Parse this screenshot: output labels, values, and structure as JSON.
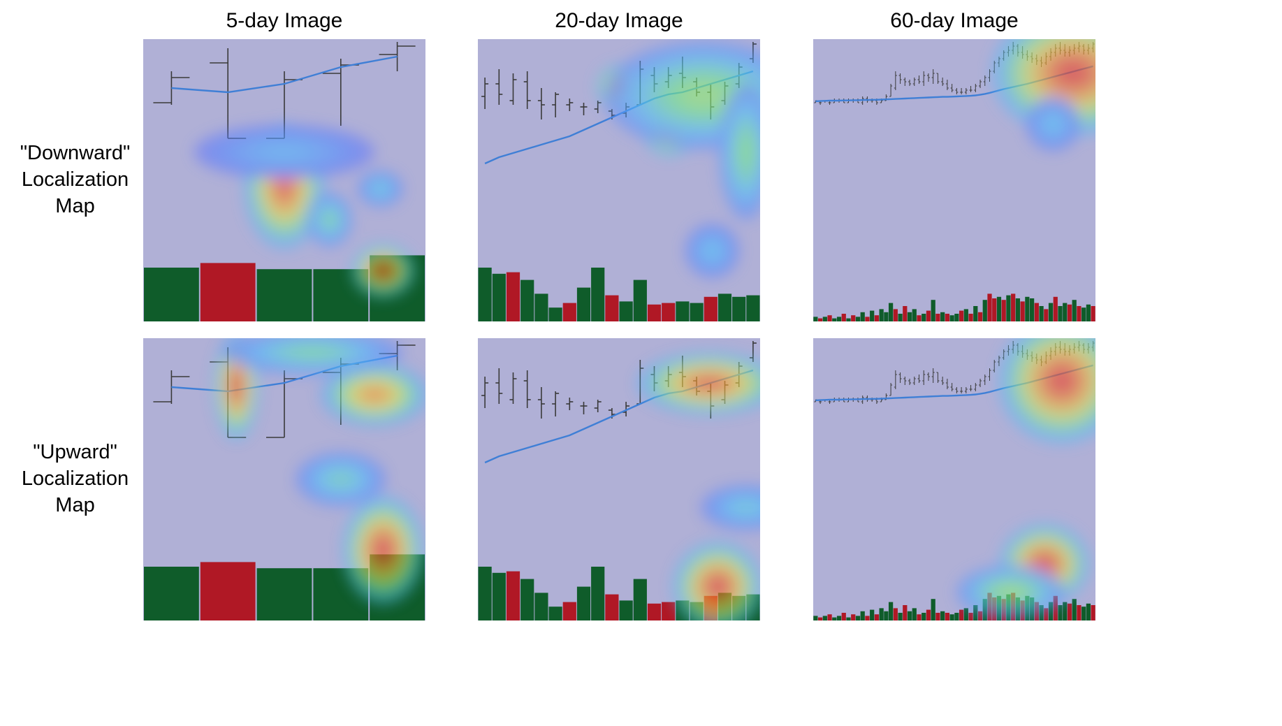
{
  "columns": [
    {
      "title": "5-day Image"
    },
    {
      "title": "20-day Image"
    },
    {
      "title": "60-day Image"
    }
  ],
  "rows": [
    {
      "label_lines": [
        "\"Downward\"",
        "Localization",
        "Map"
      ]
    },
    {
      "label_lines": [
        "\"Upward\"",
        "Localization",
        "Map"
      ]
    }
  ],
  "colors": {
    "background_tint": "#b0b0d6",
    "price_bar": "#3a3a3a",
    "moving_average": "#3f7fd6",
    "volume_up": "#0f5c2a",
    "volume_down": "#b01825"
  },
  "panels": {
    "5": {
      "prices": [
        {
          "h": 0.86,
          "l": 0.7,
          "o": 0.71,
          "c": 0.83
        },
        {
          "h": 0.97,
          "l": 0.54,
          "o": 0.9,
          "c": 0.54
        },
        {
          "h": 0.86,
          "l": 0.54,
          "o": 0.54,
          "c": 0.82
        },
        {
          "h": 0.92,
          "l": 0.6,
          "o": 0.85,
          "c": 0.89
        },
        {
          "h": 1.0,
          "l": 0.86,
          "o": 0.94,
          "c": 0.98
        }
      ],
      "ma": [
        0.78,
        0.76,
        0.8,
        0.88,
        0.93
      ],
      "volume": [
        0.35,
        0.38,
        0.34,
        0.34,
        0.43
      ],
      "dir": [
        1,
        -1,
        1,
        1,
        1
      ],
      "heat": {
        "down": [
          [
            0.5,
            0.48,
            0.09,
            0.14,
            0.95
          ],
          [
            0.85,
            0.18,
            0.07,
            0.06,
            1.0
          ],
          [
            0.66,
            0.36,
            0.05,
            0.06,
            0.45
          ],
          [
            0.84,
            0.47,
            0.05,
            0.04,
            0.35
          ],
          [
            0.5,
            0.6,
            0.2,
            0.06,
            0.25
          ]
        ],
        "up": [
          [
            0.85,
            0.25,
            0.09,
            0.12,
            1.0
          ],
          [
            0.33,
            0.83,
            0.05,
            0.12,
            1.0
          ],
          [
            0.82,
            0.8,
            0.12,
            0.07,
            0.85
          ],
          [
            0.7,
            0.5,
            0.1,
            0.06,
            0.4
          ],
          [
            0.6,
            0.95,
            0.2,
            0.05,
            0.45
          ]
        ]
      }
    },
    "20": {
      "prices": [
        {
          "h": 0.83,
          "l": 0.68,
          "o": 0.74,
          "c": 0.8
        },
        {
          "h": 0.87,
          "l": 0.7,
          "o": 0.8,
          "c": 0.75
        },
        {
          "h": 0.85,
          "l": 0.7,
          "o": 0.72,
          "c": 0.82
        },
        {
          "h": 0.86,
          "l": 0.68,
          "o": 0.81,
          "c": 0.72
        },
        {
          "h": 0.78,
          "l": 0.63,
          "o": 0.72,
          "c": 0.7
        },
        {
          "h": 0.76,
          "l": 0.64,
          "o": 0.7,
          "c": 0.75
        },
        {
          "h": 0.73,
          "l": 0.67,
          "o": 0.7,
          "c": 0.71
        },
        {
          "h": 0.71,
          "l": 0.65,
          "o": 0.69,
          "c": 0.69
        },
        {
          "h": 0.72,
          "l": 0.66,
          "o": 0.68,
          "c": 0.71
        },
        {
          "h": 0.68,
          "l": 0.63,
          "o": 0.67,
          "c": 0.65
        },
        {
          "h": 0.71,
          "l": 0.64,
          "o": 0.66,
          "c": 0.69
        },
        {
          "h": 0.91,
          "l": 0.7,
          "o": 0.7,
          "c": 0.87
        },
        {
          "h": 0.88,
          "l": 0.76,
          "o": 0.84,
          "c": 0.8
        },
        {
          "h": 0.88,
          "l": 0.78,
          "o": 0.81,
          "c": 0.84
        },
        {
          "h": 0.93,
          "l": 0.78,
          "o": 0.85,
          "c": 0.83
        },
        {
          "h": 0.83,
          "l": 0.74,
          "o": 0.81,
          "c": 0.76
        },
        {
          "h": 0.8,
          "l": 0.63,
          "o": 0.76,
          "c": 0.69
        },
        {
          "h": 0.81,
          "l": 0.7,
          "o": 0.72,
          "c": 0.79
        },
        {
          "h": 0.9,
          "l": 0.78,
          "o": 0.8,
          "c": 0.88
        },
        {
          "h": 1.0,
          "l": 0.9,
          "o": 0.92,
          "c": 0.99
        }
      ],
      "ma": [
        0.42,
        0.45,
        0.47,
        0.49,
        0.51,
        0.53,
        0.55,
        0.58,
        0.61,
        0.64,
        0.67,
        0.7,
        0.73,
        0.75,
        0.76,
        0.78,
        0.8,
        0.82,
        0.84,
        0.86
      ],
      "volume": [
        0.35,
        0.31,
        0.32,
        0.27,
        0.18,
        0.09,
        0.12,
        0.22,
        0.35,
        0.17,
        0.13,
        0.27,
        0.11,
        0.12,
        0.13,
        0.12,
        0.16,
        0.18,
        0.16,
        0.17
      ],
      "dir": [
        1,
        1,
        -1,
        1,
        1,
        1,
        -1,
        1,
        1,
        -1,
        1,
        1,
        -1,
        -1,
        1,
        1,
        -1,
        1,
        1,
        1
      ],
      "heat": {
        "down": [
          [
            0.5,
            0.83,
            0.05,
            0.05,
            1.0
          ],
          [
            0.68,
            0.68,
            0.06,
            0.06,
            1.0
          ],
          [
            0.8,
            0.8,
            0.22,
            0.12,
            0.55
          ],
          [
            0.95,
            0.6,
            0.06,
            0.15,
            0.5
          ],
          [
            0.83,
            0.25,
            0.06,
            0.06,
            0.3
          ]
        ],
        "up": [
          [
            0.82,
            0.84,
            0.16,
            0.07,
            0.95
          ],
          [
            0.85,
            0.12,
            0.1,
            0.1,
            1.0
          ],
          [
            0.95,
            0.4,
            0.1,
            0.05,
            0.35
          ]
        ]
      }
    },
    "60": {
      "prices": [
        {
          "h": 0.72,
          "l": 0.71,
          "o": 0.71,
          "c": 0.72
        },
        {
          "h": 0.72,
          "l": 0.7,
          "o": 0.71,
          "c": 0.71
        },
        {
          "h": 0.72,
          "l": 0.71,
          "o": 0.72,
          "c": 0.72
        },
        {
          "h": 0.72,
          "l": 0.7,
          "o": 0.71,
          "c": 0.71
        },
        {
          "h": 0.73,
          "l": 0.71,
          "o": 0.71,
          "c": 0.72
        },
        {
          "h": 0.73,
          "l": 0.71,
          "o": 0.72,
          "c": 0.72
        },
        {
          "h": 0.73,
          "l": 0.71,
          "o": 0.72,
          "c": 0.71
        },
        {
          "h": 0.73,
          "l": 0.71,
          "o": 0.71,
          "c": 0.72
        },
        {
          "h": 0.73,
          "l": 0.71,
          "o": 0.72,
          "c": 0.72
        },
        {
          "h": 0.73,
          "l": 0.71,
          "o": 0.72,
          "c": 0.71
        },
        {
          "h": 0.74,
          "l": 0.7,
          "o": 0.71,
          "c": 0.73
        },
        {
          "h": 0.74,
          "l": 0.71,
          "o": 0.73,
          "c": 0.72
        },
        {
          "h": 0.73,
          "l": 0.71,
          "o": 0.72,
          "c": 0.72
        },
        {
          "h": 0.73,
          "l": 0.7,
          "o": 0.72,
          "c": 0.71
        },
        {
          "h": 0.73,
          "l": 0.71,
          "o": 0.71,
          "c": 0.72
        },
        {
          "h": 0.75,
          "l": 0.72,
          "o": 0.72,
          "c": 0.74
        },
        {
          "h": 0.8,
          "l": 0.74,
          "o": 0.74,
          "c": 0.79
        },
        {
          "h": 0.86,
          "l": 0.77,
          "o": 0.78,
          "c": 0.84
        },
        {
          "h": 0.85,
          "l": 0.8,
          "o": 0.84,
          "c": 0.82
        },
        {
          "h": 0.83,
          "l": 0.79,
          "o": 0.82,
          "c": 0.81
        },
        {
          "h": 0.82,
          "l": 0.79,
          "o": 0.81,
          "c": 0.8
        },
        {
          "h": 0.83,
          "l": 0.79,
          "o": 0.8,
          "c": 0.82
        },
        {
          "h": 0.84,
          "l": 0.8,
          "o": 0.82,
          "c": 0.81
        },
        {
          "h": 0.86,
          "l": 0.79,
          "o": 0.81,
          "c": 0.84
        },
        {
          "h": 0.85,
          "l": 0.81,
          "o": 0.84,
          "c": 0.83
        },
        {
          "h": 0.87,
          "l": 0.8,
          "o": 0.83,
          "c": 0.85
        },
        {
          "h": 0.85,
          "l": 0.8,
          "o": 0.85,
          "c": 0.81
        },
        {
          "h": 0.83,
          "l": 0.79,
          "o": 0.81,
          "c": 0.8
        },
        {
          "h": 0.82,
          "l": 0.77,
          "o": 0.8,
          "c": 0.78
        },
        {
          "h": 0.8,
          "l": 0.76,
          "o": 0.78,
          "c": 0.77
        },
        {
          "h": 0.78,
          "l": 0.75,
          "o": 0.77,
          "c": 0.76
        },
        {
          "h": 0.78,
          "l": 0.75,
          "o": 0.76,
          "c": 0.76
        },
        {
          "h": 0.78,
          "l": 0.75,
          "o": 0.76,
          "c": 0.77
        },
        {
          "h": 0.79,
          "l": 0.76,
          "o": 0.77,
          "c": 0.77
        },
        {
          "h": 0.8,
          "l": 0.76,
          "o": 0.77,
          "c": 0.79
        },
        {
          "h": 0.82,
          "l": 0.78,
          "o": 0.79,
          "c": 0.81
        },
        {
          "h": 0.84,
          "l": 0.79,
          "o": 0.81,
          "c": 0.83
        },
        {
          "h": 0.87,
          "l": 0.81,
          "o": 0.83,
          "c": 0.86
        },
        {
          "h": 0.91,
          "l": 0.85,
          "o": 0.86,
          "c": 0.9
        },
        {
          "h": 0.93,
          "l": 0.88,
          "o": 0.9,
          "c": 0.92
        },
        {
          "h": 0.96,
          "l": 0.91,
          "o": 0.92,
          "c": 0.95
        },
        {
          "h": 0.98,
          "l": 0.93,
          "o": 0.95,
          "c": 0.96
        },
        {
          "h": 1.0,
          "l": 0.94,
          "o": 0.96,
          "c": 0.98
        },
        {
          "h": 0.99,
          "l": 0.93,
          "o": 0.98,
          "c": 0.95
        },
        {
          "h": 0.98,
          "l": 0.92,
          "o": 0.95,
          "c": 0.94
        },
        {
          "h": 0.96,
          "l": 0.91,
          "o": 0.94,
          "c": 0.93
        },
        {
          "h": 0.95,
          "l": 0.9,
          "o": 0.93,
          "c": 0.92
        },
        {
          "h": 0.94,
          "l": 0.89,
          "o": 0.92,
          "c": 0.91
        },
        {
          "h": 0.93,
          "l": 0.88,
          "o": 0.91,
          "c": 0.9
        },
        {
          "h": 0.95,
          "l": 0.89,
          "o": 0.9,
          "c": 0.93
        },
        {
          "h": 0.97,
          "l": 0.91,
          "o": 0.93,
          "c": 0.95
        },
        {
          "h": 0.99,
          "l": 0.93,
          "o": 0.95,
          "c": 0.97
        },
        {
          "h": 1.0,
          "l": 0.94,
          "o": 0.97,
          "c": 0.96
        },
        {
          "h": 0.99,
          "l": 0.93,
          "o": 0.96,
          "c": 0.95
        },
        {
          "h": 0.98,
          "l": 0.93,
          "o": 0.95,
          "c": 0.96
        },
        {
          "h": 0.99,
          "l": 0.94,
          "o": 0.96,
          "c": 0.97
        },
        {
          "h": 1.0,
          "l": 0.95,
          "o": 0.97,
          "c": 0.98
        },
        {
          "h": 0.99,
          "l": 0.94,
          "o": 0.98,
          "c": 0.96
        },
        {
          "h": 0.99,
          "l": 0.94,
          "o": 0.96,
          "c": 0.97
        },
        {
          "h": 1.0,
          "l": 0.95,
          "o": 0.97,
          "c": 0.99
        }
      ],
      "ma": [
        0.717,
        0.718,
        0.719,
        0.72,
        0.72,
        0.72,
        0.721,
        0.721,
        0.722,
        0.722,
        0.723,
        0.723,
        0.724,
        0.724,
        0.725,
        0.726,
        0.727,
        0.728,
        0.729,
        0.73,
        0.731,
        0.732,
        0.733,
        0.734,
        0.735,
        0.736,
        0.737,
        0.738,
        0.738,
        0.739,
        0.74,
        0.741,
        0.742,
        0.743,
        0.745,
        0.748,
        0.752,
        0.757,
        0.763,
        0.769,
        0.775,
        0.78,
        0.785,
        0.79,
        0.795,
        0.8,
        0.806,
        0.812,
        0.818,
        0.824,
        0.83,
        0.836,
        0.842,
        0.848,
        0.854,
        0.86,
        0.866,
        0.872,
        0.878,
        0.884
      ],
      "volume": [
        0.03,
        0.02,
        0.03,
        0.04,
        0.02,
        0.03,
        0.05,
        0.02,
        0.04,
        0.03,
        0.06,
        0.03,
        0.07,
        0.04,
        0.08,
        0.06,
        0.12,
        0.08,
        0.05,
        0.1,
        0.06,
        0.08,
        0.04,
        0.05,
        0.07,
        0.14,
        0.05,
        0.06,
        0.05,
        0.04,
        0.05,
        0.07,
        0.08,
        0.05,
        0.1,
        0.06,
        0.14,
        0.18,
        0.15,
        0.16,
        0.14,
        0.17,
        0.18,
        0.15,
        0.13,
        0.16,
        0.15,
        0.12,
        0.1,
        0.08,
        0.12,
        0.16,
        0.1,
        0.12,
        0.11,
        0.14,
        0.1,
        0.09,
        0.11,
        0.1
      ],
      "dir": [
        1,
        -1,
        1,
        -1,
        1,
        1,
        -1,
        1,
        -1,
        1,
        1,
        -1,
        1,
        -1,
        1,
        1,
        1,
        -1,
        1,
        -1,
        1,
        1,
        -1,
        1,
        -1,
        1,
        -1,
        1,
        -1,
        1,
        1,
        -1,
        1,
        -1,
        1,
        -1,
        1,
        -1,
        -1,
        1,
        -1,
        1,
        -1,
        1,
        -1,
        1,
        1,
        -1,
        1,
        -1,
        1,
        -1,
        1,
        1,
        -1,
        1,
        -1,
        1,
        1,
        -1
      ],
      "heat": {
        "down": [
          [
            0.92,
            0.88,
            0.18,
            0.14,
            1.0
          ],
          [
            0.85,
            0.7,
            0.06,
            0.06,
            0.3
          ]
        ],
        "up": [
          [
            0.88,
            0.85,
            0.14,
            0.14,
            1.0
          ],
          [
            0.82,
            0.2,
            0.1,
            0.09,
            1.0
          ],
          [
            0.7,
            0.1,
            0.12,
            0.06,
            0.55
          ]
        ]
      }
    }
  }
}
